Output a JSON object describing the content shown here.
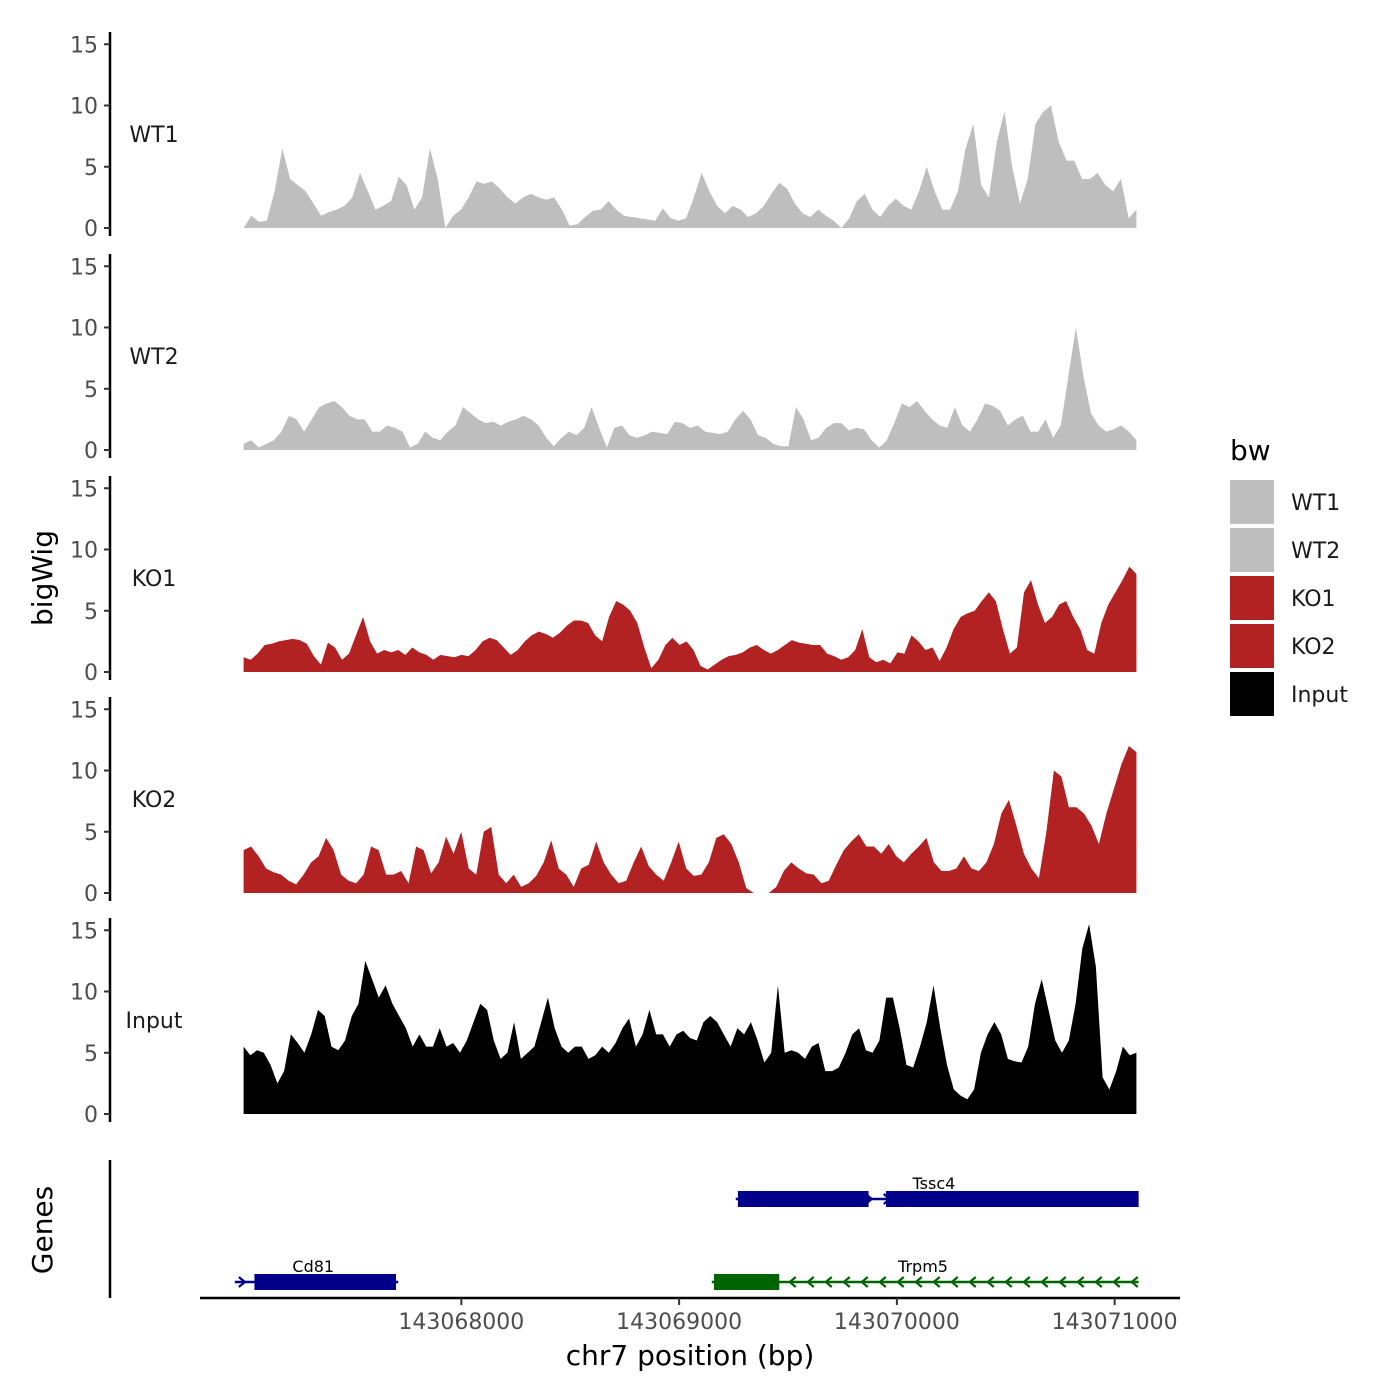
{
  "chart_data": {
    "type": "area",
    "chromosome": "chr7",
    "xlabel": "chr7 position (bp)",
    "ylabel": "bigWig",
    "genes_label": "Genes",
    "xlim": [
      143066800,
      143071300
    ],
    "xticks": [
      143068000,
      143069000,
      143070000,
      143071000
    ],
    "xtick_labels": [
      "143068000",
      "143069000",
      "143070000",
      "143071000"
    ],
    "ylim": [
      0,
      16
    ],
    "yticks": [
      0,
      5,
      10,
      15
    ],
    "ytick_labels": [
      "0",
      "5",
      "10",
      "15"
    ],
    "legend": {
      "title": "bw",
      "placement": "right",
      "entries": [
        {
          "label": "WT1",
          "color": "#BEBEBE"
        },
        {
          "label": "WT2",
          "color": "#BEBEBE"
        },
        {
          "label": "KO1",
          "color": "#B22222"
        },
        {
          "label": "KO2",
          "color": "#B22222"
        },
        {
          "label": "Input",
          "color": "#000000"
        }
      ]
    },
    "series": [
      {
        "name": "WT1",
        "color": "#BEBEBE",
        "x_start": 143067000,
        "x_end": 143071100,
        "values": [
          0,
          1,
          0.5,
          0.6,
          3,
          6.5,
          4,
          3.5,
          3,
          2,
          1,
          1.3,
          1.5,
          1.8,
          2.5,
          4.5,
          3,
          1.5,
          1.8,
          2.2,
          4.2,
          3.5,
          1.5,
          2.5,
          6.5,
          4,
          0,
          1,
          1.5,
          2.5,
          3.8,
          3.6,
          3.8,
          3.2,
          2.5,
          2,
          2.5,
          2.8,
          2.5,
          2.3,
          2.5,
          1.5,
          0.2,
          0.3,
          0.9,
          1.4,
          1.5,
          2.2,
          1.5,
          1,
          0.9,
          0.8,
          0.7,
          0.6,
          1.6,
          0.8,
          0.6,
          0.8,
          2.5,
          4.5,
          3,
          1.8,
          1.2,
          1.8,
          1.5,
          0.9,
          1.2,
          1.8,
          2.8,
          3.7,
          3.2,
          2,
          1.2,
          0.9,
          1.5,
          1,
          0.6,
          0,
          0.8,
          2.2,
          2.8,
          1.5,
          0.9,
          1.8,
          2.4,
          1.8,
          1.5,
          3,
          5,
          3,
          1.5,
          1.5,
          3,
          6.5,
          8.5,
          3.5,
          2.5,
          7,
          9.5,
          5,
          2,
          4,
          8.5,
          9.5,
          10,
          7,
          5.5,
          5.5,
          4,
          4,
          4.5,
          3.5,
          3,
          4,
          0.8,
          1.5
        ]
      },
      {
        "name": "WT2",
        "color": "#BEBEBE",
        "x_start": 143067000,
        "x_end": 143071100,
        "values": [
          0.5,
          0.8,
          0.2,
          0.5,
          0.8,
          1.5,
          2.8,
          2.5,
          1.5,
          2.5,
          3.5,
          3.8,
          4,
          3.5,
          2.8,
          2.5,
          2.5,
          1.5,
          1.5,
          2,
          1.8,
          1.5,
          0.2,
          0.5,
          1.5,
          1,
          0.8,
          1.5,
          2,
          3.5,
          3,
          2.5,
          2.2,
          2.3,
          2,
          2.3,
          2.5,
          2.8,
          2.5,
          2,
          1,
          0.3,
          1,
          1.5,
          1.2,
          1.8,
          3.5,
          1.8,
          0.2,
          1.8,
          2,
          1.2,
          1,
          1.2,
          1.5,
          1.4,
          1.3,
          2.3,
          2.2,
          1.8,
          2,
          1.5,
          1.4,
          1.3,
          1.5,
          2.5,
          3.2,
          2.5,
          1.2,
          1,
          0.5,
          0.3,
          0.3,
          3.5,
          2.5,
          0.8,
          1,
          1.8,
          2.2,
          2.2,
          1.6,
          1.8,
          1.7,
          0.8,
          0.2,
          0.8,
          2.2,
          3.8,
          3.5,
          4,
          3.2,
          2.5,
          2,
          1.8,
          3.5,
          2,
          1.5,
          2.5,
          3.8,
          3.6,
          3.2,
          2,
          2.5,
          2.8,
          1.5,
          1.5,
          2.5,
          1,
          2,
          6,
          10,
          6,
          3,
          2,
          1.5,
          1.7,
          2,
          1.5,
          0.8
        ]
      },
      {
        "name": "KO1",
        "color": "#B22222",
        "x_start": 143067000,
        "x_end": 143071100,
        "values": [
          1.2,
          1,
          1.5,
          2.2,
          2.3,
          2.5,
          2.6,
          2.7,
          2.6,
          2.3,
          1.3,
          0.6,
          2.4,
          2,
          1,
          1.5,
          3,
          4.5,
          2.5,
          1.5,
          1.8,
          1.6,
          1.8,
          1.4,
          2,
          1.6,
          1.4,
          1,
          1.4,
          1.3,
          1.2,
          1.4,
          1.3,
          1.8,
          2.5,
          2.8,
          2.6,
          2,
          1.4,
          1.8,
          2.5,
          3,
          3.3,
          3.1,
          2.8,
          3.2,
          3.8,
          4.2,
          4.2,
          4,
          3,
          2.5,
          4.5,
          5.8,
          5.5,
          5,
          4,
          2,
          0.3,
          1,
          2.2,
          2.8,
          2.2,
          2.5,
          1.8,
          0.5,
          0.2,
          0.6,
          1,
          1.3,
          1.4,
          1.6,
          2,
          2.2,
          1.8,
          1.5,
          1.8,
          2.2,
          2.6,
          2.4,
          2.3,
          2.2,
          2.2,
          1.5,
          1.3,
          1,
          1.2,
          1.8,
          3.5,
          1.2,
          0.8,
          1,
          0.7,
          1.6,
          1.5,
          3,
          2.5,
          1.8,
          2,
          0.9,
          2,
          3.5,
          4.5,
          4.8,
          5,
          5.8,
          6.5,
          5.8,
          3.5,
          1.5,
          2,
          6.5,
          7.5,
          5.5,
          4,
          4.5,
          5.5,
          5.8,
          4.5,
          3.5,
          1.8,
          1.5,
          4,
          5.5,
          6.5,
          7.5,
          8.6,
          8
        ]
      },
      {
        "name": "KO2",
        "color": "#B22222",
        "x_start": 143067000,
        "x_end": 143071100,
        "values": [
          3.5,
          3.8,
          3,
          2,
          1.7,
          1.5,
          1,
          0.7,
          1.5,
          2.5,
          3,
          4.5,
          3.5,
          1.5,
          1,
          0.8,
          1.5,
          3.8,
          3.5,
          1.5,
          1.5,
          1.8,
          0.8,
          3.8,
          3.5,
          1.6,
          2.5,
          4.6,
          3.2,
          5,
          2,
          1.5,
          5,
          5.4,
          1.5,
          0.8,
          1.5,
          0.5,
          0.8,
          1.4,
          2.5,
          4.3,
          2,
          1.5,
          0.5,
          2,
          2.3,
          4.2,
          2.5,
          1.5,
          0.8,
          1,
          2.5,
          3.8,
          2.2,
          1.5,
          1,
          2.5,
          4.2,
          2,
          1.4,
          1.5,
          2.5,
          4.5,
          4.8,
          4,
          2.5,
          0.4,
          0,
          0,
          0,
          0.5,
          1.8,
          2.5,
          2,
          1.6,
          1.5,
          0.8,
          1,
          2.3,
          3.5,
          4.2,
          4.8,
          3.8,
          3.8,
          3.2,
          4,
          3,
          2.5,
          3.2,
          3.8,
          4.5,
          2.5,
          1.8,
          1.8,
          2,
          3,
          2,
          1.8,
          2.5,
          4,
          6.5,
          7.6,
          5.5,
          3.2,
          2,
          1.2,
          5,
          10,
          9.5,
          7,
          7,
          6.5,
          5.5,
          4,
          6.5,
          8.5,
          10.5,
          12,
          11.5
        ]
      },
      {
        "name": "Input",
        "color": "#000000",
        "x_start": 143067000,
        "x_end": 143071100,
        "values": [
          5.5,
          4.8,
          5.2,
          5,
          4,
          2.5,
          3.5,
          6.5,
          5.8,
          5,
          6.5,
          8.5,
          8,
          5.5,
          5.2,
          6,
          8,
          9,
          12.5,
          11,
          9.5,
          10.5,
          9,
          8,
          7,
          5.5,
          6.5,
          5.5,
          5.5,
          7,
          5.5,
          5.8,
          5,
          6,
          7.5,
          9,
          8.5,
          6,
          4.5,
          5,
          7.5,
          4.5,
          5,
          5.5,
          7.5,
          9.5,
          7,
          5.5,
          5,
          5.5,
          5.5,
          4.5,
          4.8,
          5.5,
          5,
          5.8,
          7,
          7.8,
          5.5,
          6.5,
          8.5,
          6.5,
          6.5,
          5.5,
          6.5,
          6.8,
          6.2,
          6,
          7.5,
          8,
          7.5,
          6.5,
          5.5,
          7,
          6.5,
          7.5,
          6,
          4.2,
          5,
          10.5,
          5,
          5.2,
          5,
          4.5,
          5.5,
          5.8,
          3.5,
          3.5,
          3.8,
          5,
          6.5,
          7,
          5.2,
          5,
          6,
          9.5,
          9.5,
          7,
          4,
          3.8,
          5.5,
          7.5,
          10.5,
          7,
          4,
          2,
          1.5,
          1.2,
          2,
          5,
          6.5,
          7.5,
          6.5,
          4.5,
          4.3,
          4.2,
          5.5,
          9,
          11,
          8.5,
          6,
          5,
          6,
          9,
          13.5,
          15.5,
          12,
          3,
          2,
          3.5,
          5.5,
          4.8,
          5
        ]
      }
    ],
    "genes": [
      {
        "name": "Tssc4",
        "color": "#00008B",
        "strand": "+",
        "row": "upper",
        "start": 143069260,
        "end": 143071110,
        "exons": [
          [
            143069270,
            143069870
          ],
          [
            143069950,
            143071110
          ]
        ]
      },
      {
        "name": "Cd81",
        "color": "#00008B",
        "strand": "+",
        "row": "lower",
        "start": 143066960,
        "end": 143067710,
        "exons": [
          [
            143067050,
            143067700
          ]
        ]
      },
      {
        "name": "Trpm5",
        "color": "#006400",
        "strand": "-",
        "row": "lower",
        "start": 143069150,
        "end": 143071110,
        "exons": [
          [
            143069160,
            143069460
          ]
        ]
      }
    ]
  }
}
